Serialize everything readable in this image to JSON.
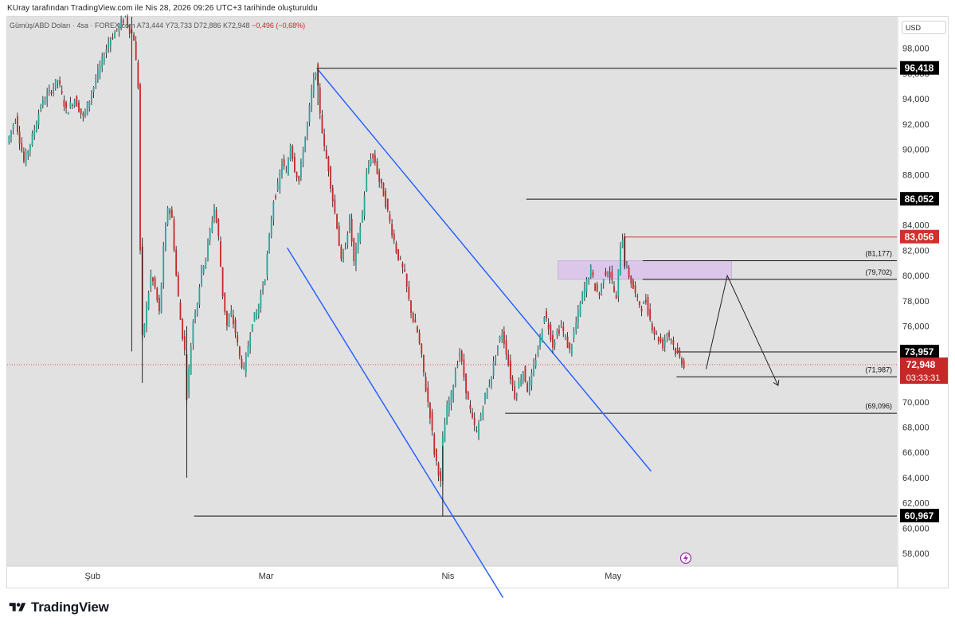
{
  "header": {
    "caption": "KUray tarafından TradingView.com ile Nis 28, 2026 09:26 UTC+3 tarihinde oluşturuldu"
  },
  "legend": {
    "symbol": "Gümüş/ABD Doları · 4sa · FOREX.com",
    "open": "A73,444",
    "high": "Y73,733",
    "low": "D72,886",
    "close": "K72,948",
    "change": "−0,496 (−0,68%)"
  },
  "currency": "USD",
  "footer": {
    "brand": "TradingView"
  },
  "colors": {
    "background": "#e1e1e1",
    "up": "#26a69a",
    "down": "#c62828",
    "channel": "#2962ff",
    "zone": "#dcc6ea",
    "level_label_bg": "#000000",
    "resistance_label_bg": "#d32f2f"
  },
  "chart_data": {
    "type": "candlestick",
    "title": "Gümüş/ABD Doları · 4sa · FOREX.com",
    "ylim": [
      57000,
      100500
    ],
    "y_ticks": [
      "98,000",
      "96,000",
      "94,000",
      "92,000",
      "90,000",
      "88,000",
      "86,000",
      "84,000",
      "82,000",
      "80,000",
      "78,000",
      "76,000",
      "74,000",
      "72,000",
      "70,000",
      "68,000",
      "66,000",
      "64,000",
      "62,000",
      "60,000",
      "58,000"
    ],
    "x_ticks": [
      "Şub",
      "Mar",
      "Nis",
      "May"
    ],
    "key_levels": [
      {
        "label": "96,418",
        "value": 96418,
        "style": "boxed"
      },
      {
        "label": "86,052",
        "value": 86052,
        "style": "boxed"
      },
      {
        "label": "83,056",
        "value": 83056,
        "style": "boxed-red"
      },
      {
        "label": "(81,177)",
        "value": 81177,
        "style": "plain"
      },
      {
        "label": "(79,702)",
        "value": 79702,
        "style": "plain"
      },
      {
        "label": "73,957",
        "value": 73957,
        "style": "boxed"
      },
      {
        "label": "(71,987)",
        "value": 71987,
        "style": "plain"
      },
      {
        "label": "(69,096)",
        "value": 69096,
        "style": "plain"
      },
      {
        "label": "60,967",
        "value": 60967,
        "style": "boxed"
      }
    ],
    "last_price": {
      "label": "72,948",
      "value": 72948,
      "countdown": "03:33:31"
    },
    "path_points": [
      [
        0,
        90500
      ],
      [
        4,
        92500
      ],
      [
        8,
        89000
      ],
      [
        12,
        91000
      ],
      [
        16,
        93500
      ],
      [
        20,
        94500
      ],
      [
        24,
        95500
      ],
      [
        28,
        93000
      ],
      [
        32,
        94000
      ],
      [
        36,
        92500
      ],
      [
        40,
        94500
      ],
      [
        44,
        96500
      ],
      [
        48,
        98500
      ],
      [
        52,
        99500
      ],
      [
        56,
        100500
      ],
      [
        58,
        99500
      ],
      [
        60,
        98800
      ],
      [
        62,
        95000
      ],
      [
        63,
        82000
      ],
      [
        64,
        75000
      ],
      [
        66,
        77500
      ],
      [
        68,
        80000
      ],
      [
        70,
        79000
      ],
      [
        72,
        77000
      ],
      [
        74,
        82000
      ],
      [
        76,
        85500
      ],
      [
        78,
        84500
      ],
      [
        80,
        80000
      ],
      [
        82,
        76500
      ],
      [
        84,
        74000
      ],
      [
        85,
        70500
      ],
      [
        86,
        72500
      ],
      [
        88,
        76500
      ],
      [
        90,
        78000
      ],
      [
        92,
        80500
      ],
      [
        94,
        81500
      ],
      [
        96,
        83500
      ],
      [
        98,
        85500
      ],
      [
        100,
        83000
      ],
      [
        102,
        78500
      ],
      [
        104,
        76000
      ],
      [
        106,
        77000
      ],
      [
        108,
        75500
      ],
      [
        110,
        73500
      ],
      [
        112,
        72500
      ],
      [
        114,
        74500
      ],
      [
        116,
        76500
      ],
      [
        118,
        77000
      ],
      [
        120,
        78500
      ],
      [
        122,
        80000
      ],
      [
        124,
        83000
      ],
      [
        126,
        86000
      ],
      [
        128,
        87000
      ],
      [
        130,
        89000
      ],
      [
        132,
        88000
      ],
      [
        134,
        90500
      ],
      [
        136,
        88500
      ],
      [
        138,
        87500
      ],
      [
        140,
        90000
      ],
      [
        142,
        92000
      ],
      [
        144,
        94500
      ],
      [
        146,
        96418
      ],
      [
        148,
        93000
      ],
      [
        150,
        90000
      ],
      [
        152,
        88500
      ],
      [
        154,
        86000
      ],
      [
        156,
        84000
      ],
      [
        158,
        81000
      ],
      [
        160,
        82500
      ],
      [
        162,
        84500
      ],
      [
        164,
        81000
      ],
      [
        166,
        83000
      ],
      [
        168,
        85000
      ],
      [
        170,
        88000
      ],
      [
        172,
        89500
      ],
      [
        174,
        89000
      ],
      [
        176,
        87500
      ],
      [
        178,
        86500
      ],
      [
        180,
        85000
      ],
      [
        182,
        83500
      ],
      [
        184,
        82000
      ],
      [
        186,
        81000
      ],
      [
        188,
        80000
      ],
      [
        190,
        78000
      ],
      [
        192,
        76500
      ],
      [
        194,
        75500
      ],
      [
        196,
        73500
      ],
      [
        198,
        71000
      ],
      [
        200,
        69000
      ],
      [
        202,
        66000
      ],
      [
        204,
        64500
      ],
      [
        205,
        63500
      ],
      [
        206,
        67000
      ],
      [
        208,
        69500
      ],
      [
        210,
        70500
      ],
      [
        212,
        72500
      ],
      [
        214,
        74000
      ],
      [
        216,
        72000
      ],
      [
        218,
        70000
      ],
      [
        220,
        68500
      ],
      [
        222,
        67500
      ],
      [
        224,
        69000
      ],
      [
        226,
        70500
      ],
      [
        228,
        71500
      ],
      [
        230,
        73000
      ],
      [
        232,
        74500
      ],
      [
        234,
        75500
      ],
      [
        236,
        74000
      ],
      [
        238,
        72000
      ],
      [
        240,
        70500
      ],
      [
        242,
        71500
      ],
      [
        244,
        72500
      ],
      [
        246,
        71000
      ],
      [
        248,
        72000
      ],
      [
        250,
        73500
      ],
      [
        252,
        75000
      ],
      [
        254,
        77000
      ],
      [
        256,
        76000
      ],
      [
        258,
        74500
      ],
      [
        260,
        75500
      ],
      [
        262,
        76000
      ],
      [
        264,
        75000
      ],
      [
        266,
        74000
      ],
      [
        268,
        75500
      ],
      [
        270,
        77000
      ],
      [
        272,
        78500
      ],
      [
        274,
        79500
      ],
      [
        276,
        80500
      ],
      [
        278,
        79000
      ],
      [
        280,
        78500
      ],
      [
        282,
        80000
      ],
      [
        284,
        80500
      ],
      [
        286,
        79500
      ],
      [
        288,
        78000
      ],
      [
        290,
        82500
      ],
      [
        291,
        83056
      ],
      [
        292,
        81000
      ],
      [
        294,
        80000
      ],
      [
        296,
        79000
      ],
      [
        298,
        78000
      ],
      [
        300,
        77500
      ],
      [
        302,
        78000
      ],
      [
        304,
        76500
      ],
      [
        306,
        75500
      ],
      [
        308,
        75000
      ],
      [
        310,
        74500
      ],
      [
        312,
        75500
      ],
      [
        314,
        75000
      ],
      [
        316,
        74000
      ],
      [
        318,
        73500
      ],
      [
        320,
        72948
      ]
    ],
    "annotations": [
      {
        "type": "channel",
        "upper": [
          [
            146,
            96418
          ],
          [
            304,
            64500
          ]
        ],
        "lower": [
          [
            132,
            82200
          ],
          [
            234,
            54500
          ]
        ]
      },
      {
        "type": "zone",
        "x": [
          260,
          342
        ],
        "y": [
          79702,
          81177
        ]
      },
      {
        "type": "projection",
        "points": [
          [
            330,
            72600
          ],
          [
            340,
            80000
          ],
          [
            364,
            71300
          ]
        ]
      }
    ]
  }
}
